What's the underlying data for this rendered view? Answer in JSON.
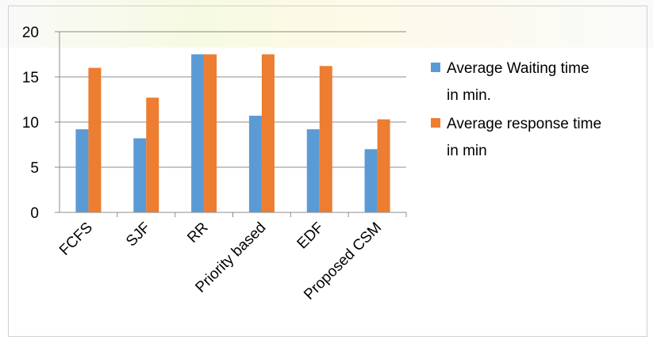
{
  "chart_data": {
    "type": "bar",
    "categories": [
      "FCFS",
      "SJF",
      "RR",
      "Priority based",
      "EDF",
      "Proposed CSM"
    ],
    "series": [
      {
        "name": "Average Waiting time in min.",
        "color": "#5b9bd5",
        "values": [
          9.2,
          8.2,
          17.5,
          10.7,
          9.2,
          7.0
        ]
      },
      {
        "name": "Average response time in min",
        "color": "#ed7d31",
        "values": [
          16.0,
          12.7,
          17.5,
          17.5,
          16.2,
          10.3
        ]
      }
    ],
    "ylim": [
      0,
      20
    ],
    "yticks": [
      0,
      5,
      10,
      15,
      20
    ],
    "grid": true,
    "legend_position": "right",
    "title": "",
    "xlabel": "",
    "ylabel": ""
  }
}
